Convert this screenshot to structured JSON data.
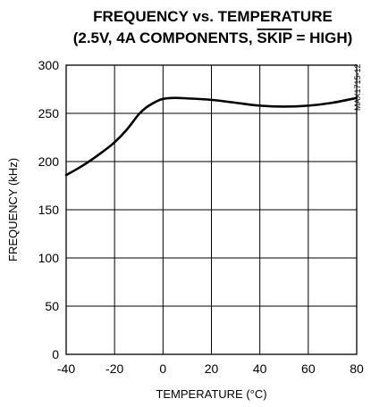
{
  "chart_data": {
    "type": "line",
    "title": {
      "line1": "FREQUENCY vs. TEMPERATURE",
      "line2_prefix": "(2.5V, 4A COMPONENTS, ",
      "line2_overlined": "SKIP",
      "line2_suffix": " = HIGH)"
    },
    "xlabel": "TEMPERATURE (°C)",
    "ylabel": "FREQUENCY (kHz)",
    "xlim": [
      -40,
      80
    ],
    "ylim": [
      0,
      300
    ],
    "xticks": [
      -40,
      -20,
      0,
      20,
      40,
      60,
      80
    ],
    "yticks": [
      0,
      50,
      100,
      150,
      200,
      250,
      300
    ],
    "grid": true,
    "legend": "none",
    "side_code": "MAX1715-12",
    "series": [
      {
        "x": [
          -40,
          -35,
          -30,
          -25,
          -20,
          -15,
          -10,
          -7,
          -3,
          0,
          5,
          10,
          20,
          30,
          40,
          50,
          60,
          70,
          80
        ],
        "y": [
          186,
          193,
          201,
          210,
          220,
          233,
          249,
          256,
          262,
          265,
          266,
          265.5,
          264,
          261,
          258,
          257,
          258,
          261,
          266
        ]
      }
    ],
    "line_color": "#000000"
  }
}
